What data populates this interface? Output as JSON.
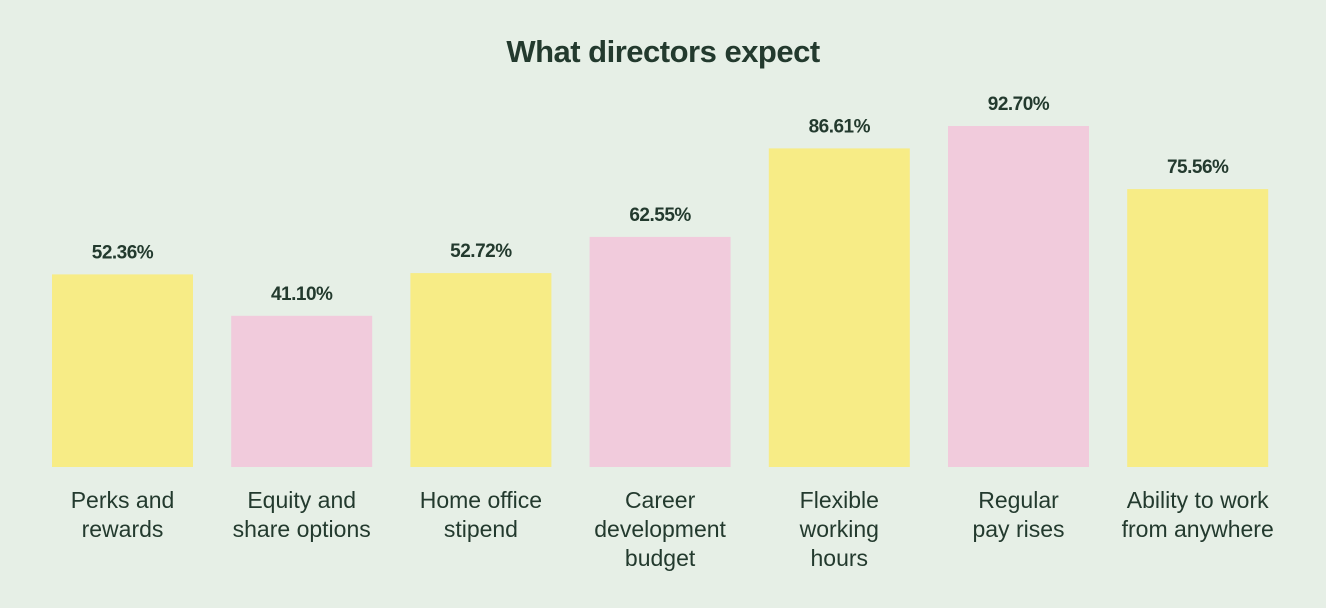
{
  "chart_data": {
    "type": "bar",
    "title": "What directors expect",
    "categories": [
      "Perks and rewards",
      "Equity and share options",
      "Home office stipend",
      "Career development budget",
      "Flexible working hours",
      "Regular pay rises",
      "Ability to work from anywhere"
    ],
    "category_lines": [
      [
        "Perks and",
        "rewards"
      ],
      [
        "Equity and",
        "share options"
      ],
      [
        "Home office",
        "stipend"
      ],
      [
        "Career",
        "development",
        "budget"
      ],
      [
        "Flexible",
        "working",
        "hours"
      ],
      [
        "Regular",
        "pay rises"
      ],
      [
        "Ability to work",
        "from anywhere"
      ]
    ],
    "values": [
      52.36,
      41.1,
      52.72,
      62.55,
      86.61,
      92.7,
      75.56
    ],
    "value_labels": [
      "52.36%",
      "41.10%",
      "52.72%",
      "62.55%",
      "86.61%",
      "92.70%",
      "75.56%"
    ],
    "bar_colors": [
      "#f7ec86",
      "#f1cbdc",
      "#f7ec86",
      "#f1cbdc",
      "#f7ec86",
      "#f1cbdc",
      "#f7ec86"
    ],
    "ylim": [
      0,
      100
    ],
    "xlabel": "",
    "ylabel": "",
    "grid": false
  }
}
